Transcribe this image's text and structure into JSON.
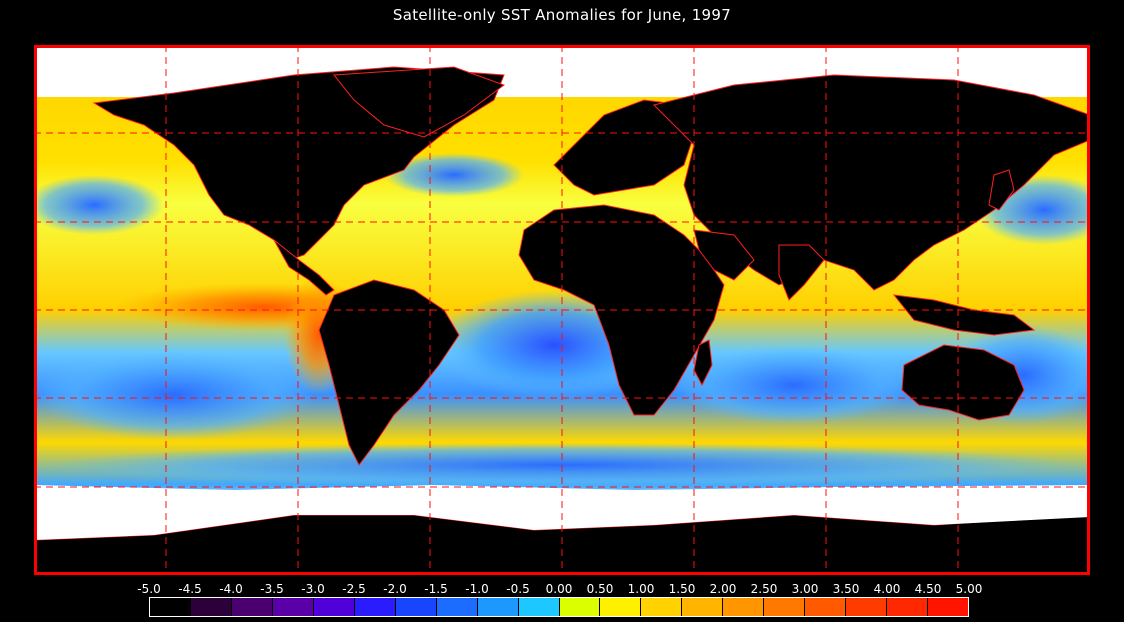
{
  "title": "Satellite-only SST Anomalies for June, 1997",
  "legend": {
    "ticks": [
      "-5.0",
      "-4.5",
      "-4.0",
      "-3.5",
      "-3.0",
      "-2.5",
      "-2.0",
      "-1.5",
      "-1.0",
      "-0.5",
      "0.00",
      "0.50",
      "1.00",
      "1.50",
      "2.00",
      "2.50",
      "3.00",
      "3.50",
      "4.00",
      "4.50",
      "5.00"
    ],
    "colors": [
      "#000000",
      "#2c0038",
      "#4b0070",
      "#5a00a8",
      "#5000d8",
      "#2a1cff",
      "#1846ff",
      "#1c6cff",
      "#1c98ff",
      "#1cc8ff",
      "#dcff00",
      "#fff000",
      "#ffd200",
      "#ffb400",
      "#ff9600",
      "#ff7800",
      "#ff5a00",
      "#ff3c00",
      "#ff2800",
      "#ff1400"
    ]
  },
  "map": {
    "frame_color": "#ff0000",
    "land_color": "#000000",
    "ice_color": "#ffffff",
    "grid_style": "dashed red"
  }
}
